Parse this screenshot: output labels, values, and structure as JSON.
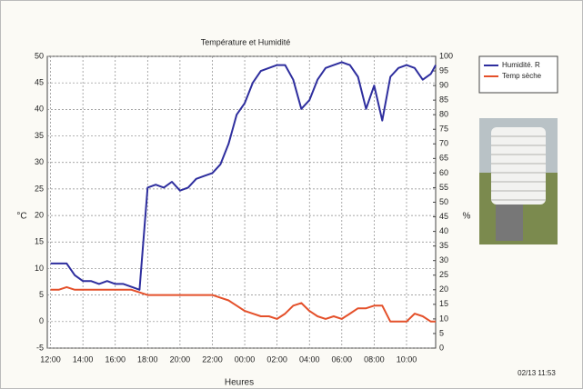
{
  "chart_data": {
    "type": "line",
    "title": "Température et Humidité",
    "x_label": "Heures",
    "y_label": "°C",
    "y2_label": "%",
    "timestamp": "02/13 11:53",
    "x": [
      0,
      0.5,
      1,
      1.5,
      2,
      2.5,
      3,
      3.5,
      4,
      4.5,
      5,
      5.5,
      6,
      6.5,
      7,
      7.5,
      8,
      8.5,
      9,
      9.5,
      10,
      10.5,
      11,
      11.5,
      12,
      12.5,
      13,
      13.5,
      14,
      14.5,
      15,
      15.5,
      16,
      16.5,
      17,
      17.5,
      18,
      18.5,
      19,
      19.5,
      20,
      20.5,
      21,
      21.5,
      22,
      22.5,
      23,
      23.5,
      23.8
    ],
    "xlim": [
      -0.2,
      23.8
    ],
    "xticks": [
      {
        "value": 0,
        "label": "12:00"
      },
      {
        "value": 2,
        "label": "14:00"
      },
      {
        "value": 4,
        "label": "16:00"
      },
      {
        "value": 6,
        "label": "18:00"
      },
      {
        "value": 8,
        "label": "20:00"
      },
      {
        "value": 10,
        "label": "22:00"
      },
      {
        "value": 12,
        "label": "00:00"
      },
      {
        "value": 14,
        "label": "02:00"
      },
      {
        "value": 16,
        "label": "04:00"
      },
      {
        "value": 18,
        "label": "06:00"
      },
      {
        "value": 20,
        "label": "08:00"
      },
      {
        "value": 22,
        "label": "10:00"
      }
    ],
    "ylim": [
      -5,
      50
    ],
    "yticks": [
      -5,
      0,
      5,
      10,
      15,
      20,
      25,
      30,
      35,
      40,
      45,
      50
    ],
    "y2lim": [
      0,
      100
    ],
    "y2ticks": [
      0,
      5,
      10,
      15,
      20,
      25,
      30,
      35,
      40,
      45,
      50,
      55,
      60,
      65,
      70,
      75,
      80,
      85,
      90,
      95,
      100
    ],
    "grid": true,
    "legend": "right",
    "series": [
      {
        "name": "Humidité. R",
        "color": "#2e2e9e",
        "axis": "y2",
        "values": [
          29,
          29,
          29,
          25,
          23,
          23,
          22,
          23,
          22,
          22,
          21,
          20,
          55,
          56,
          55,
          57,
          54,
          55,
          58,
          59,
          60,
          63,
          70,
          80,
          84,
          91,
          95,
          96,
          97,
          97,
          92,
          82,
          85,
          92,
          96,
          97,
          98,
          97,
          93,
          82,
          90,
          78,
          93,
          96,
          97,
          96,
          92,
          94,
          97
        ]
      },
      {
        "name": "Temp sèche",
        "color": "#e4502a",
        "values": [
          6,
          6,
          6.5,
          6,
          6,
          6,
          6,
          6,
          6,
          6,
          6,
          5.5,
          5,
          5,
          5,
          5,
          5,
          5,
          5,
          5,
          5,
          4.5,
          4,
          3,
          2,
          1.5,
          1,
          1,
          0.5,
          1.5,
          3,
          3.5,
          2,
          1,
          0.5,
          1,
          0.5,
          1.5,
          2.5,
          2.5,
          3,
          3,
          0,
          0,
          0,
          1.5,
          1,
          0,
          0
        ]
      }
    ]
  }
}
